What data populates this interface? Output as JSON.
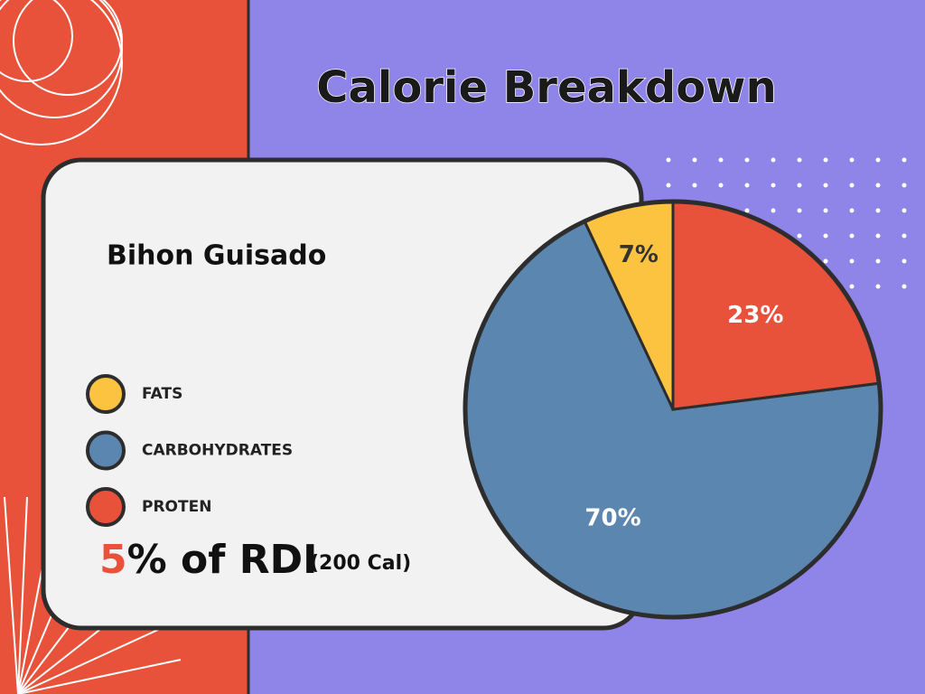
{
  "chart_data": {
    "type": "pie",
    "title": "Calorie Breakdown",
    "subtitle": "Bihon Guisado",
    "categories": [
      "FATS",
      "CARBOHYDRATES",
      "PROTEN"
    ],
    "values": [
      7,
      70,
      23
    ],
    "value_labels": [
      "7%",
      "70%",
      "23%"
    ],
    "colors": [
      "#fcc340",
      "#5b86b0",
      "#e8523a"
    ],
    "label_colors": [
      "#333333",
      "#ffffff",
      "#ffffff"
    ]
  },
  "rdi": {
    "percent": "5",
    "text": "% of RDI",
    "calories": "(200 Cal)"
  }
}
